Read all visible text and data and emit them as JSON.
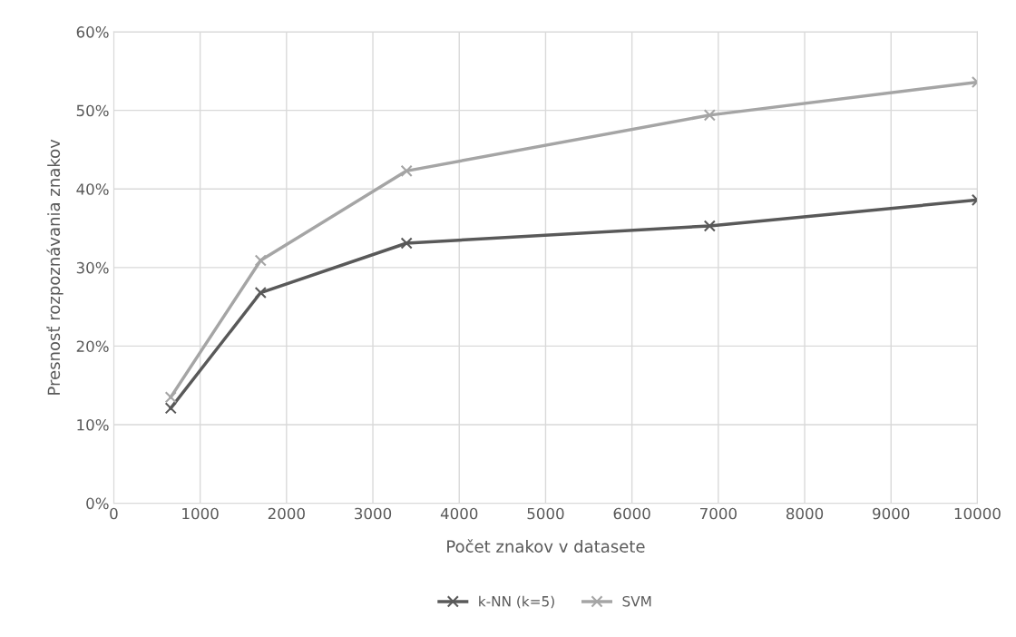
{
  "chart_data": {
    "type": "line",
    "xlabel": "Počet znakov v datasete",
    "ylabel": "Presnosť rozpoznávania znakov",
    "series": [
      {
        "name": "k-NN (k=5)",
        "color": "#595959",
        "x": [
          660,
          1700,
          3390,
          6900,
          10000
        ],
        "values": [
          12.1,
          26.8,
          33.1,
          35.3,
          38.6
        ]
      },
      {
        "name": "SVM",
        "color": "#a5a5a5",
        "x": [
          660,
          1700,
          3390,
          6900,
          10000
        ],
        "values": [
          13.5,
          30.9,
          42.3,
          49.4,
          53.6
        ]
      }
    ],
    "xlim": [
      0,
      10000
    ],
    "xticks": [
      0,
      1000,
      2000,
      3000,
      4000,
      5000,
      6000,
      7000,
      8000,
      9000,
      10000
    ],
    "ylim": [
      0,
      60
    ],
    "yticks": [
      {
        "value": 0,
        "label": "0%"
      },
      {
        "value": 10,
        "label": "10%"
      },
      {
        "value": 20,
        "label": "20%"
      },
      {
        "value": 30,
        "label": "30%"
      },
      {
        "value": 40,
        "label": "40%"
      },
      {
        "value": 50,
        "label": "50%"
      },
      {
        "value": 60,
        "label": "60%"
      }
    ],
    "grid": true,
    "legend": "bottom",
    "marker": "cross",
    "line_style": "solid"
  }
}
